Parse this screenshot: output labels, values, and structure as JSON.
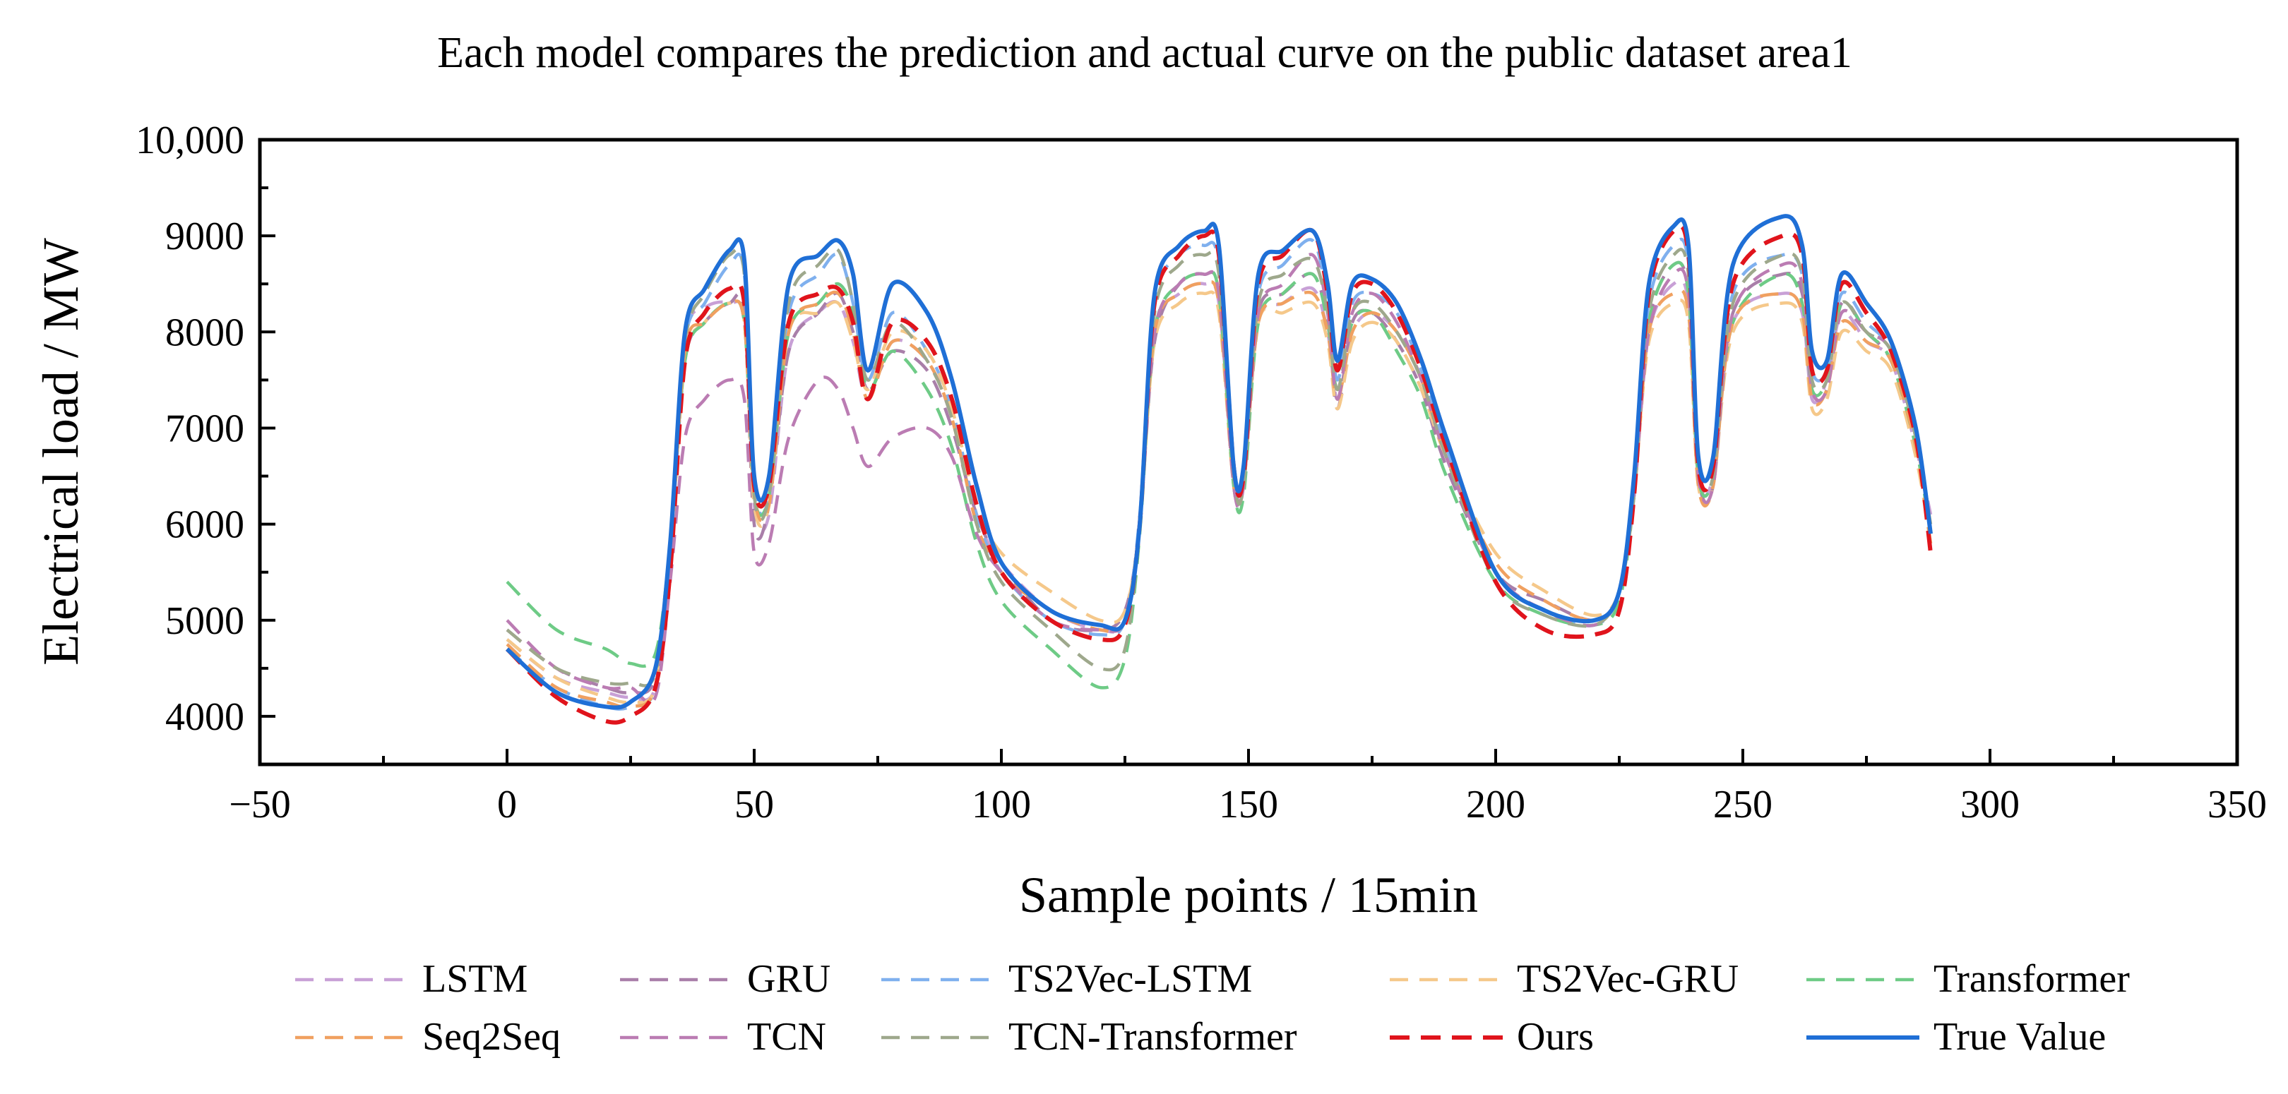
{
  "chart_data": {
    "type": "line",
    "title": "Each model compares the prediction and actual curve on the public dataset area1",
    "xlabel": "Sample points / 15min",
    "ylabel": "Electrical load / MW",
    "xlim": [
      -50,
      350
    ],
    "ylim": [
      3500,
      10000
    ],
    "xticks": [
      -50,
      0,
      50,
      100,
      150,
      200,
      250,
      300,
      350
    ],
    "yticks": [
      4000,
      5000,
      6000,
      7000,
      8000,
      9000,
      10000
    ],
    "xtick_labels": [
      "−50",
      "0",
      "50",
      "100",
      "150",
      "200",
      "250",
      "300",
      "350"
    ],
    "ytick_labels": [
      "4000",
      "5000",
      "6000",
      "7000",
      "8000",
      "9000",
      "10,000"
    ],
    "legend_placement": "bottom",
    "anchors_x": [
      0,
      10,
      20,
      25,
      30,
      33,
      36,
      40,
      45,
      48,
      50,
      53,
      57,
      63,
      67,
      70,
      73,
      78,
      85,
      90,
      95,
      100,
      110,
      120,
      125,
      128,
      131,
      136,
      141,
      144,
      147,
      149,
      152,
      157,
      163,
      166,
      168,
      171,
      175,
      180,
      185,
      190,
      200,
      210,
      220,
      225,
      228,
      231,
      236,
      239,
      241,
      244,
      248,
      258,
      262,
      264,
      267,
      270,
      275,
      280,
      285,
      288
    ],
    "series": [
      {
        "name": "LSTM",
        "color": "#c8a0d6",
        "dash": "dash",
        "values": [
          4800,
          4400,
          4250,
          4200,
          4300,
          5600,
          7900,
          8250,
          8300,
          8100,
          6200,
          6100,
          7800,
          8200,
          8300,
          7900,
          7300,
          7900,
          7700,
          7100,
          6100,
          5600,
          5100,
          4900,
          5000,
          6000,
          8000,
          8400,
          8500,
          8300,
          6500,
          6500,
          8100,
          8300,
          8450,
          8000,
          7300,
          8000,
          8200,
          8000,
          7500,
          6700,
          5500,
          5100,
          4950,
          5300,
          6400,
          8000,
          8500,
          8300,
          6500,
          6500,
          8100,
          8400,
          8200,
          7300,
          7500,
          8200,
          7900,
          7700,
          6800,
          6100
        ]
      },
      {
        "name": "GRU",
        "color": "#a97fa9",
        "dash": "dash",
        "values": [
          4900,
          4500,
          4300,
          4250,
          4400,
          5700,
          7700,
          8100,
          8300,
          8200,
          6000,
          6200,
          7800,
          8200,
          8400,
          8000,
          7400,
          7800,
          7600,
          7000,
          6100,
          5600,
          5000,
          4900,
          5100,
          6000,
          7900,
          8500,
          8600,
          8400,
          6500,
          6400,
          8200,
          8400,
          8600,
          8100,
          7200,
          8100,
          8200,
          7900,
          7400,
          6600,
          5500,
          5200,
          5000,
          5300,
          6300,
          8100,
          8700,
          8400,
          6500,
          6400,
          8200,
          8600,
          8400,
          7400,
          7400,
          8300,
          8000,
          7700,
          6900,
          6000
        ]
      },
      {
        "name": "TS2Vec-LSTM",
        "color": "#7fb0ee",
        "dash": "dash",
        "values": [
          4700,
          4300,
          4100,
          4100,
          4300,
          5700,
          7900,
          8300,
          8700,
          8600,
          6400,
          6300,
          8200,
          8600,
          8800,
          8300,
          7500,
          8200,
          7800,
          7200,
          6100,
          5500,
          5000,
          4850,
          5000,
          6100,
          8300,
          8800,
          8900,
          8700,
          6600,
          6500,
          8400,
          8700,
          8950,
          8300,
          7500,
          8300,
          8400,
          8200,
          7600,
          6800,
          5500,
          5100,
          4950,
          5300,
          6400,
          8300,
          8900,
          8700,
          6600,
          6600,
          8400,
          8800,
          8600,
          7600,
          7600,
          8400,
          8100,
          7800,
          6900,
          5900
        ]
      },
      {
        "name": "TS2Vec-GRU",
        "color": "#f5c88a",
        "dash": "dash",
        "values": [
          4800,
          4400,
          4200,
          4150,
          4300,
          5600,
          7700,
          8100,
          8300,
          8100,
          6200,
          6200,
          8000,
          8200,
          8300,
          7900,
          7400,
          8000,
          7800,
          7200,
          6200,
          5700,
          5300,
          5000,
          5100,
          6000,
          7900,
          8300,
          8400,
          8200,
          6400,
          6400,
          8100,
          8200,
          8300,
          7900,
          7200,
          7900,
          8100,
          7900,
          7400,
          6700,
          5700,
          5300,
          5050,
          5300,
          6300,
          7900,
          8300,
          8100,
          6400,
          6400,
          8000,
          8300,
          8100,
          7200,
          7300,
          8000,
          7800,
          7600,
          6700,
          5800
        ]
      },
      {
        "name": "Transformer",
        "color": "#6ecb86",
        "dash": "dash",
        "values": [
          5400,
          4900,
          4700,
          4550,
          4650,
          5800,
          7700,
          8100,
          8300,
          8100,
          6300,
          6300,
          8000,
          8300,
          8500,
          8200,
          7400,
          7800,
          7400,
          6800,
          5800,
          5200,
          4700,
          4300,
          4600,
          5900,
          8000,
          8500,
          8600,
          8400,
          6400,
          6300,
          8100,
          8400,
          8600,
          8100,
          7400,
          8100,
          8200,
          7800,
          7300,
          6500,
          5400,
          5050,
          4950,
          5200,
          6300,
          8100,
          8700,
          8400,
          6500,
          6500,
          8100,
          8600,
          8300,
          7400,
          7500,
          8300,
          8000,
          7700,
          6800,
          5900
        ]
      },
      {
        "name": "Seq2Seq",
        "color": "#f0a060",
        "dash": "dash",
        "values": [
          4750,
          4300,
          4150,
          4100,
          4300,
          5600,
          7800,
          8100,
          8300,
          8100,
          6300,
          6200,
          8000,
          8300,
          8400,
          8000,
          7300,
          7900,
          7700,
          7100,
          6000,
          5500,
          5100,
          4900,
          5000,
          6000,
          8000,
          8400,
          8500,
          8300,
          6400,
          6400,
          8100,
          8300,
          8400,
          8000,
          7300,
          8000,
          8200,
          8000,
          7500,
          6700,
          5600,
          5200,
          5000,
          5300,
          6300,
          8000,
          8400,
          8200,
          6400,
          6400,
          8100,
          8400,
          8200,
          7300,
          7400,
          8100,
          7900,
          7700,
          6800,
          5800
        ]
      },
      {
        "name": "TCN",
        "color": "#bb7cb3",
        "dash": "dash",
        "values": [
          5000,
          4500,
          4300,
          4300,
          4200,
          5400,
          6900,
          7300,
          7500,
          7300,
          5700,
          5800,
          6900,
          7500,
          7400,
          7000,
          6600,
          6900,
          7000,
          6700,
          5900,
          5500,
          5000,
          4900,
          5000,
          6000,
          8000,
          8500,
          8600,
          8400,
          6400,
          6400,
          8200,
          8500,
          8800,
          8200,
          7300,
          8200,
          8400,
          8100,
          7500,
          6700,
          5500,
          5100,
          4950,
          5300,
          6300,
          8000,
          8600,
          8400,
          6500,
          6400,
          8200,
          8700,
          8500,
          7400,
          7400,
          8200,
          8000,
          7800,
          6900,
          5900
        ]
      },
      {
        "name": "TCN-Transformer",
        "color": "#9ea88c",
        "dash": "dash",
        "values": [
          4900,
          4500,
          4350,
          4350,
          4450,
          5800,
          7900,
          8400,
          8800,
          8600,
          6300,
          6300,
          8300,
          8700,
          8850,
          8300,
          7500,
          8100,
          7700,
          7100,
          6000,
          5400,
          4900,
          4500,
          4700,
          6000,
          8200,
          8700,
          8800,
          8600,
          6500,
          6400,
          8300,
          8600,
          8750,
          8200,
          7400,
          8200,
          8300,
          8000,
          7500,
          6700,
          5400,
          5050,
          4950,
          5300,
          6300,
          8200,
          8800,
          8600,
          6600,
          6500,
          8300,
          8800,
          8600,
          7500,
          7500,
          8300,
          8000,
          7800,
          6900,
          6000
        ]
      },
      {
        "name": "Ours",
        "color": "#e0141c",
        "dash": "dash-bold",
        "values": [
          4700,
          4200,
          3950,
          4000,
          4300,
          5500,
          7700,
          8200,
          8450,
          8300,
          6400,
          6400,
          8100,
          8400,
          8450,
          8100,
          7300,
          8100,
          7900,
          7300,
          6200,
          5500,
          5000,
          4800,
          4950,
          6000,
          8300,
          8800,
          9000,
          8800,
          6600,
          6500,
          8500,
          8800,
          9050,
          8400,
          7600,
          8400,
          8500,
          8200,
          7600,
          6800,
          5400,
          4900,
          4850,
          5100,
          6300,
          8400,
          9050,
          8800,
          6600,
          6600,
          8500,
          9000,
          8800,
          7600,
          7600,
          8500,
          8200,
          7800,
          6900,
          5700
        ]
      },
      {
        "name": "True Value",
        "color": "#1f6fd6",
        "dash": "solid",
        "values": [
          4700,
          4250,
          4100,
          4150,
          4500,
          5800,
          8000,
          8450,
          8850,
          8750,
          6500,
          6500,
          8500,
          8800,
          8950,
          8600,
          7600,
          8500,
          8200,
          7500,
          6400,
          5600,
          5100,
          4950,
          5000,
          6000,
          8400,
          8900,
          9050,
          8900,
          6600,
          6600,
          8600,
          8850,
          9050,
          8500,
          7700,
          8500,
          8550,
          8300,
          7700,
          6900,
          5500,
          5100,
          5000,
          5300,
          6500,
          8500,
          9100,
          8900,
          6700,
          6700,
          8700,
          9200,
          8900,
          7800,
          7700,
          8600,
          8300,
          7900,
          7000,
          5900
        ]
      }
    ]
  }
}
